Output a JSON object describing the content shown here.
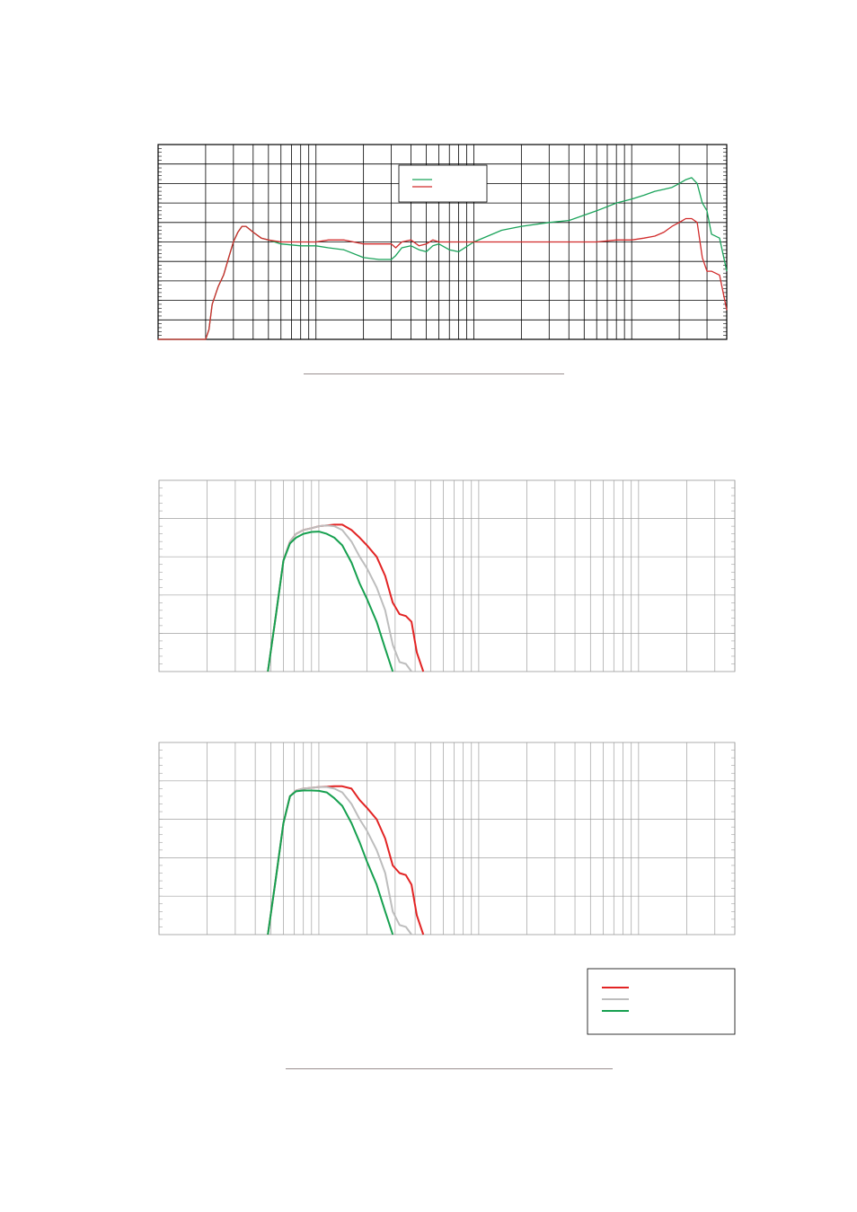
{
  "chart_data": [
    {
      "type": "line",
      "title": "",
      "xscale": "log",
      "xlim": [
        10,
        40000
      ],
      "ylim": [
        0,
        10
      ],
      "grid": true,
      "legend": "top-center",
      "series": [
        {
          "color": "#1aa35a",
          "x": [
            10,
            20,
            21,
            22,
            24,
            26,
            28,
            30,
            32,
            34,
            36,
            40,
            45,
            50,
            60,
            80,
            100,
            120,
            150,
            200,
            250,
            300,
            320,
            350,
            400,
            450,
            500,
            550,
            600,
            700,
            800,
            1000,
            1500,
            2000,
            3000,
            4000,
            6000,
            8000,
            10000,
            12000,
            14000,
            16000,
            18000,
            20000,
            22000,
            24000,
            26000,
            28000,
            30000,
            32000,
            36000,
            40000
          ],
          "y": [
            0,
            0,
            0.5,
            1.8,
            2.7,
            3.3,
            4.2,
            5.0,
            5.5,
            5.8,
            5.8,
            5.5,
            5.2,
            5.1,
            4.9,
            4.8,
            4.8,
            4.7,
            4.6,
            4.2,
            4.1,
            4.1,
            4.3,
            4.7,
            4.8,
            4.6,
            4.5,
            4.8,
            4.9,
            4.6,
            4.5,
            5.0,
            5.6,
            5.8,
            6.0,
            6.1,
            6.6,
            7.0,
            7.2,
            7.4,
            7.6,
            7.7,
            7.8,
            8.0,
            8.2,
            8.3,
            8.0,
            7.0,
            6.6,
            5.4,
            5.2,
            3.5
          ]
        },
        {
          "color": "#d12b2b",
          "x": [
            10,
            20,
            21,
            22,
            24,
            26,
            28,
            30,
            32,
            34,
            36,
            40,
            45,
            50,
            60,
            80,
            100,
            120,
            150,
            200,
            250,
            300,
            320,
            350,
            400,
            450,
            500,
            550,
            600,
            700,
            800,
            1000,
            1500,
            2000,
            3000,
            4000,
            6000,
            8000,
            10000,
            12000,
            14000,
            16000,
            18000,
            20000,
            22000,
            24000,
            26000,
            28000,
            30000,
            32000,
            36000,
            40000
          ],
          "y": [
            0,
            0,
            0.5,
            1.8,
            2.7,
            3.3,
            4.2,
            5.0,
            5.5,
            5.8,
            5.8,
            5.5,
            5.2,
            5.1,
            5.0,
            5.0,
            5.0,
            5.1,
            5.1,
            4.9,
            4.9,
            4.9,
            4.7,
            5.0,
            5.1,
            4.8,
            4.9,
            5.1,
            5.0,
            5.0,
            5.0,
            5.0,
            5.0,
            5.0,
            5.0,
            5.0,
            5.0,
            5.1,
            5.1,
            5.2,
            5.3,
            5.5,
            5.8,
            6.0,
            6.2,
            6.2,
            6.0,
            4.2,
            3.5,
            3.5,
            3.3,
            1.5
          ]
        }
      ]
    },
    {
      "type": "line",
      "title": "",
      "xscale": "log",
      "xlim": [
        10,
        40000
      ],
      "ylim": [
        0,
        5
      ],
      "grid": true,
      "series": [
        {
          "color": "#e22424",
          "x": [
            48,
            54,
            60,
            66,
            72,
            80,
            90,
            100,
            112,
            125,
            140,
            160,
            180,
            200,
            230,
            260,
            290,
            320,
            350,
            380,
            410,
            450
          ],
          "y": [
            0,
            1.5,
            2.9,
            3.4,
            3.6,
            3.7,
            3.75,
            3.8,
            3.82,
            3.84,
            3.84,
            3.7,
            3.5,
            3.3,
            3.0,
            2.5,
            1.8,
            1.5,
            1.45,
            1.3,
            0.5,
            0
          ]
        },
        {
          "color": "#bdbdbd",
          "x": [
            48,
            54,
            60,
            66,
            72,
            80,
            90,
            100,
            112,
            125,
            140,
            160,
            180,
            200,
            230,
            260,
            290,
            320,
            350,
            380
          ],
          "y": [
            0,
            1.5,
            2.9,
            3.4,
            3.6,
            3.7,
            3.75,
            3.8,
            3.82,
            3.8,
            3.7,
            3.4,
            3.0,
            2.7,
            2.2,
            1.6,
            0.7,
            0.25,
            0.2,
            0
          ]
        },
        {
          "color": "#16a04f",
          "x": [
            48,
            54,
            60,
            66,
            72,
            80,
            90,
            100,
            112,
            125,
            140,
            160,
            180,
            200,
            230,
            260,
            290
          ],
          "y": [
            0,
            1.5,
            2.9,
            3.35,
            3.5,
            3.6,
            3.65,
            3.66,
            3.6,
            3.5,
            3.3,
            2.85,
            2.3,
            1.9,
            1.3,
            0.6,
            0
          ]
        }
      ]
    },
    {
      "type": "line",
      "title": "",
      "xscale": "log",
      "xlim": [
        10,
        40000
      ],
      "ylim": [
        0,
        5
      ],
      "grid": true,
      "legend": "bottom-right",
      "series": [
        {
          "color": "#e22424",
          "x": [
            48,
            54,
            60,
            66,
            72,
            80,
            90,
            100,
            112,
            125,
            140,
            160,
            180,
            200,
            230,
            260,
            290,
            320,
            350,
            380,
            410,
            450
          ],
          "y": [
            0,
            1.5,
            2.9,
            3.6,
            3.75,
            3.8,
            3.82,
            3.84,
            3.85,
            3.86,
            3.86,
            3.8,
            3.5,
            3.3,
            3.0,
            2.5,
            1.8,
            1.6,
            1.55,
            1.3,
            0.5,
            0
          ]
        },
        {
          "color": "#bdbdbd",
          "x": [
            48,
            54,
            60,
            66,
            72,
            80,
            90,
            100,
            112,
            125,
            140,
            160,
            180,
            200,
            230,
            260,
            290,
            320,
            350,
            380
          ],
          "y": [
            0,
            1.5,
            2.9,
            3.6,
            3.75,
            3.8,
            3.82,
            3.84,
            3.84,
            3.8,
            3.7,
            3.4,
            3.0,
            2.7,
            2.2,
            1.6,
            0.6,
            0.25,
            0.2,
            0
          ]
        },
        {
          "color": "#16a04f",
          "x": [
            48,
            54,
            60,
            66,
            72,
            80,
            90,
            100,
            112,
            125,
            140,
            160,
            180,
            200,
            230,
            260,
            290
          ],
          "y": [
            0,
            1.5,
            2.9,
            3.6,
            3.73,
            3.75,
            3.75,
            3.74,
            3.7,
            3.55,
            3.35,
            2.9,
            2.4,
            1.9,
            1.3,
            0.6,
            0
          ]
        }
      ]
    }
  ]
}
